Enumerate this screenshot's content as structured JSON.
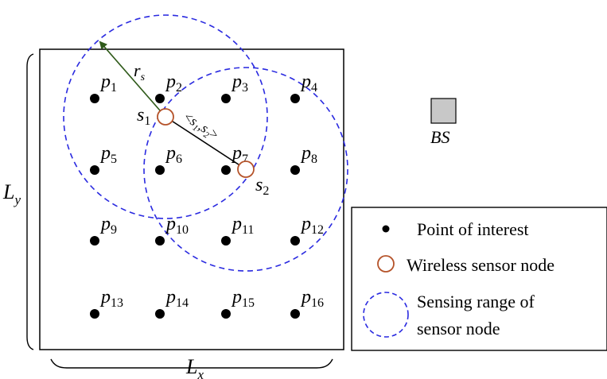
{
  "colors": {
    "point": "#000000",
    "sensor_node": "#b5532a",
    "sensing_range": "#2a2ae0",
    "radius_arrow": "#2f5a1a",
    "base_station_fill": "#c8c8c8",
    "edge_line": "#000000"
  },
  "points": [
    {
      "base": "p",
      "sub": "1"
    },
    {
      "base": "p",
      "sub": "2"
    },
    {
      "base": "p",
      "sub": "3"
    },
    {
      "base": "p",
      "sub": "4"
    },
    {
      "base": "p",
      "sub": "5"
    },
    {
      "base": "p",
      "sub": "6"
    },
    {
      "base": "p",
      "sub": "7"
    },
    {
      "base": "p",
      "sub": "8"
    },
    {
      "base": "p",
      "sub": "9"
    },
    {
      "base": "p",
      "sub": "10"
    },
    {
      "base": "p",
      "sub": "11"
    },
    {
      "base": "p",
      "sub": "12"
    },
    {
      "base": "p",
      "sub": "13"
    },
    {
      "base": "p",
      "sub": "14"
    },
    {
      "base": "p",
      "sub": "15"
    },
    {
      "base": "p",
      "sub": "16"
    }
  ],
  "sensors": [
    {
      "base": "s",
      "sub": "1"
    },
    {
      "base": "s",
      "sub": "2"
    }
  ],
  "radius_label": {
    "base": "r",
    "sub": "s"
  },
  "edge_label": {
    "open": "<",
    "a_base": "s",
    "a_sub": "1",
    "comma": ",",
    "b_base": "s",
    "b_sub": "2",
    "close": ">"
  },
  "base_station": {
    "label": "BS"
  },
  "axes": {
    "x": {
      "base": "L",
      "sub": "x"
    },
    "y": {
      "base": "L",
      "sub": "y"
    }
  },
  "legend": {
    "items": [
      {
        "icon": "point-of-interest-dot",
        "label": "Point of interest"
      },
      {
        "icon": "sensor-node-circle",
        "label": "Wireless sensor node"
      },
      {
        "icon": "sensing-range-circle",
        "label_line1": "Sensing range of",
        "label_line2": "sensor node"
      }
    ]
  }
}
